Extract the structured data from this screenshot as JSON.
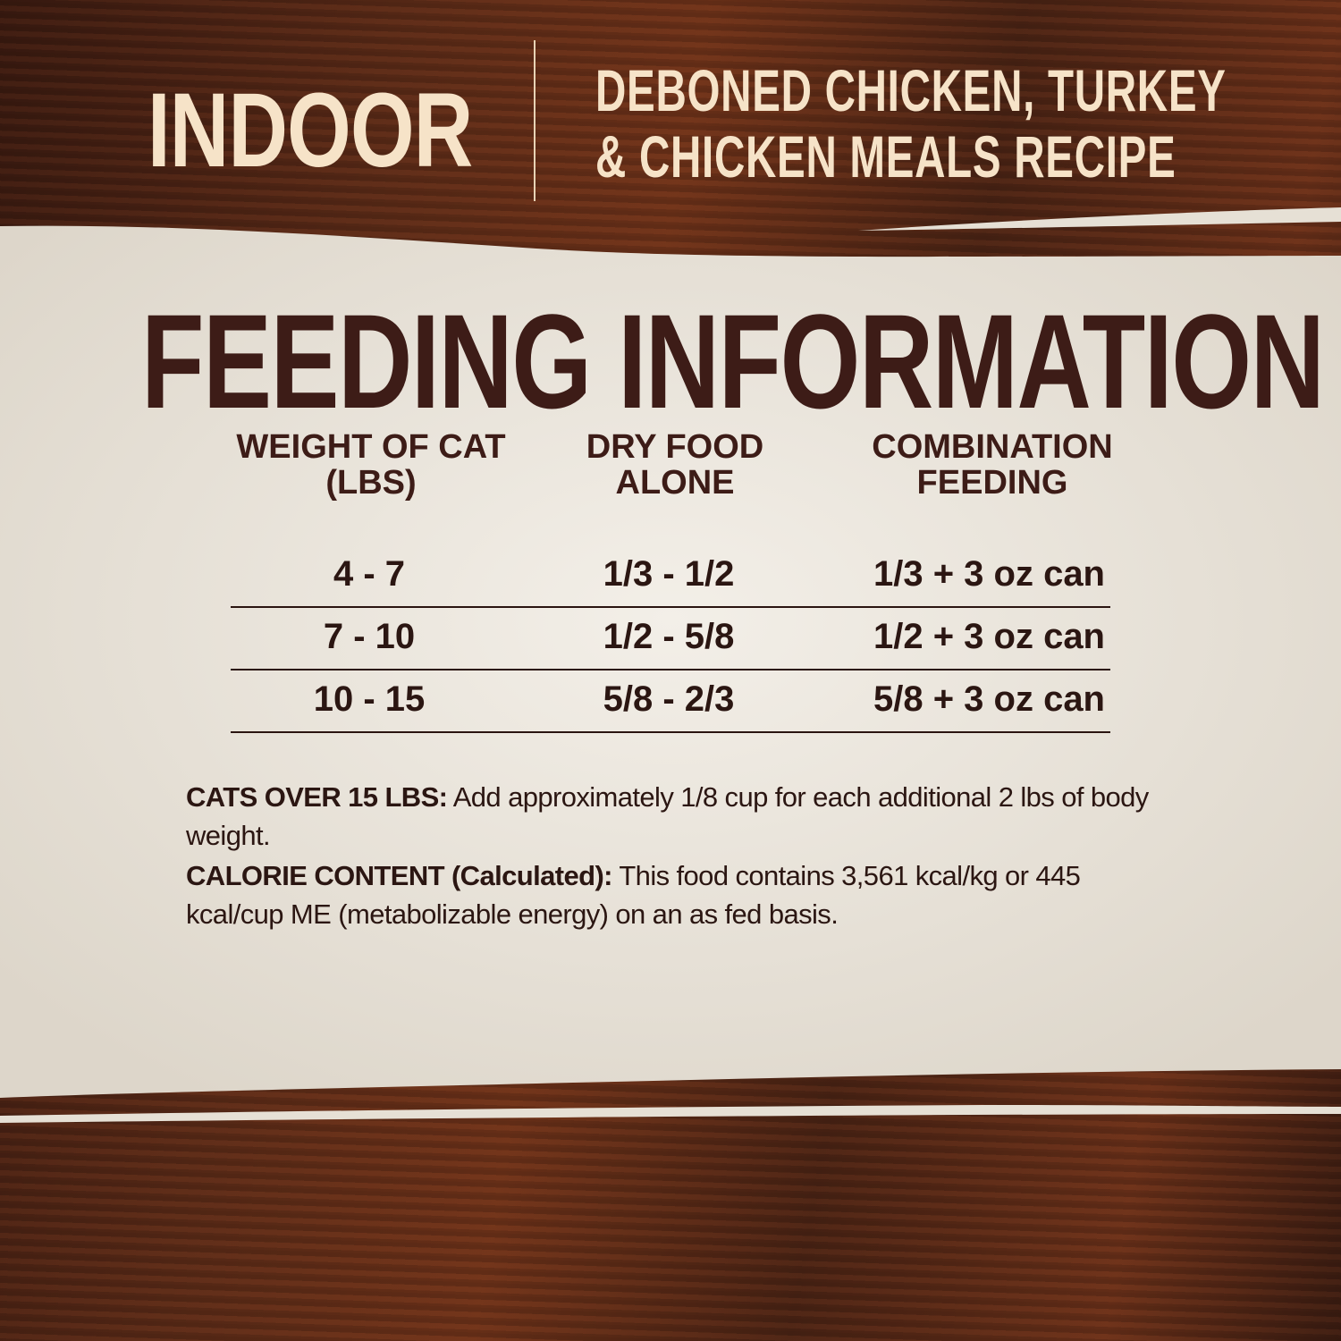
{
  "header": {
    "product_line": "INDOOR",
    "recipe_line1": "DEBONED CHICKEN, TURKEY",
    "recipe_line2": "& CHICKEN MEALS RECIPE"
  },
  "title": "FEEDING INFORMATION",
  "table": {
    "headers": [
      [
        "WEIGHT OF CAT",
        "(LBS)"
      ],
      [
        "DRY FOOD",
        "ALONE"
      ],
      [
        "COMBINATION",
        "FEEDING"
      ]
    ],
    "rows": [
      [
        "4 - 7",
        "1/3 - 1/2",
        "1/3 + 3 oz can"
      ],
      [
        "7 - 10",
        "1/2 - 5/8",
        "1/2 + 3 oz can"
      ],
      [
        "10 - 15",
        "5/8 - 2/3",
        "5/8 + 3 oz can"
      ]
    ]
  },
  "notes": {
    "cats_over_label": "CATS OVER 15 LBS:",
    "cats_over_text": " Add approximately 1/8 cup for each additional 2 lbs of body weight.",
    "calorie_label": "CALORIE CONTENT (Calculated):",
    "calorie_text": " This food contains 3,561 kcal/kg or 445 kcal/cup ME (metabolizable energy) on an as fed basis."
  },
  "colors": {
    "wood": "#5a2a17",
    "paper": "#ece7dd",
    "text": "#3d1c17",
    "header_text": "#f6e3c8"
  }
}
